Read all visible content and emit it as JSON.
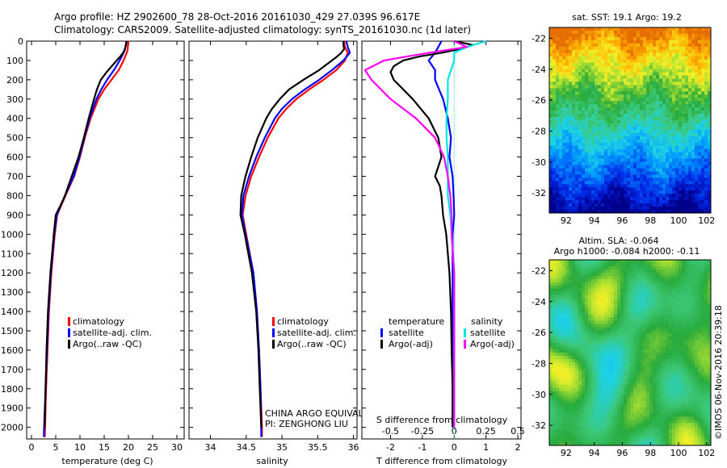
{
  "header": {
    "title_line1": "Argo profile: HZ 2902600_78 28-Oct-2016 20161030_429 27.039S 96.617E",
    "title_line2": "Climatology: CARS2009. Satellite-adjusted climatology: synTS_20161030.nc (1d later)"
  },
  "colors": {
    "climatology": "#ff0000",
    "satellite": "#0000ff",
    "argo": "#000000",
    "sal_satellite": "#00e5e5",
    "sal_argo": "#ff00ff"
  },
  "depth_ticks": [
    "0",
    "100",
    "200",
    "300",
    "400",
    "500",
    "600",
    "700",
    "800",
    "900",
    "1000",
    "1100",
    "1200",
    "1300",
    "1400",
    "1500",
    "1600",
    "1700",
    "1800",
    "1900",
    "2000"
  ],
  "chart_data": [
    {
      "type": "line",
      "name": "temperature-profile",
      "xlabel": "temperature (deg C)",
      "ylabel": "",
      "xlim": [
        -1,
        31.5
      ],
      "ylim": [
        2060,
        0
      ],
      "xticks": [
        "0",
        "5",
        "10",
        "15",
        "20",
        "25",
        "30"
      ],
      "legend": [
        "climatology",
        "satellite-adj. clim.",
        "Argo(..raw -QC)"
      ],
      "series": [
        {
          "name": "climatology",
          "color": "#ff0000",
          "depth": [
            0,
            50,
            100,
            150,
            200,
            250,
            300,
            400,
            500,
            600,
            700,
            800,
            900,
            1000,
            1200,
            1400,
            1600,
            1800,
            2000,
            2050
          ],
          "values": [
            20.0,
            19.8,
            19.0,
            18.0,
            16.5,
            15.0,
            13.8,
            12.2,
            11.0,
            10.0,
            8.8,
            7.0,
            5.3,
            4.8,
            4.1,
            3.6,
            3.3,
            3.0,
            2.8,
            2.75
          ]
        },
        {
          "name": "satellite-adj. clim.",
          "color": "#0000ff",
          "depth": [
            0,
            50,
            100,
            150,
            200,
            250,
            300,
            400,
            500,
            600,
            700,
            800,
            900,
            1000,
            1200,
            1400,
            1600,
            1800,
            2000,
            2050
          ],
          "values": [
            19.6,
            19.2,
            18.2,
            17.0,
            15.6,
            14.4,
            13.4,
            12.0,
            10.9,
            9.9,
            8.7,
            6.9,
            5.2,
            4.7,
            4.0,
            3.5,
            3.2,
            2.9,
            2.6,
            2.55
          ]
        },
        {
          "name": "Argo(..raw -QC)",
          "color": "#000000",
          "depth": [
            0,
            20,
            40,
            60,
            80,
            100,
            120,
            140,
            160,
            180,
            200,
            250,
            300,
            400,
            500,
            600,
            700,
            750,
            800,
            850,
            900,
            1000,
            1200,
            1400,
            1600,
            1800,
            2000
          ],
          "values": [
            19.6,
            19.5,
            19.3,
            18.9,
            18.3,
            17.6,
            16.9,
            16.2,
            15.5,
            14.9,
            14.3,
            13.5,
            12.9,
            11.8,
            10.8,
            9.7,
            8.3,
            7.6,
            6.9,
            6.0,
            5.0,
            4.6,
            3.9,
            3.4,
            3.1,
            2.9,
            2.7
          ]
        }
      ]
    },
    {
      "type": "line",
      "name": "salinity-profile",
      "xlabel": "salinity",
      "ylabel": "",
      "xlim": [
        33.7,
        36.05
      ],
      "ylim": [
        2060,
        0
      ],
      "xticks": [
        "34",
        "34.5",
        "35",
        "35.5",
        "36"
      ],
      "legend": [
        "climatology",
        "satellite-adj. clim.",
        "Argo(..raw -QC)"
      ],
      "annotations": [
        "CHINA ARGO EQUIVALENT",
        "PI: ZENGHONG LIU"
      ],
      "series": [
        {
          "name": "climatology",
          "color": "#ff0000",
          "depth": [
            0,
            30,
            60,
            100,
            150,
            200,
            250,
            300,
            350,
            400,
            500,
            600,
            700,
            800,
            900,
            1000,
            1200,
            1400,
            1600,
            1800,
            2000,
            2050
          ],
          "values": [
            35.87,
            35.88,
            35.92,
            35.88,
            35.76,
            35.58,
            35.38,
            35.2,
            35.06,
            34.95,
            34.8,
            34.68,
            34.57,
            34.49,
            34.45,
            34.5,
            34.6,
            34.65,
            34.68,
            34.7,
            34.72,
            34.72
          ]
        },
        {
          "name": "satellite-adj. clim.",
          "color": "#0000ff",
          "depth": [
            0,
            30,
            60,
            100,
            150,
            200,
            250,
            300,
            350,
            400,
            500,
            600,
            700,
            800,
            900,
            1000,
            1200,
            1400,
            1600,
            1800,
            2000,
            2050
          ],
          "values": [
            35.9,
            35.92,
            35.95,
            35.86,
            35.7,
            35.52,
            35.32,
            35.14,
            35.0,
            34.9,
            34.76,
            34.64,
            34.54,
            34.46,
            34.44,
            34.49,
            34.6,
            34.65,
            34.68,
            34.7,
            34.71,
            34.71
          ]
        },
        {
          "name": "Argo(..raw -QC)",
          "color": "#000000",
          "depth": [
            0,
            20,
            40,
            60,
            80,
            100,
            150,
            200,
            250,
            300,
            350,
            400,
            500,
            600,
            700,
            800,
            900,
            1000,
            1200,
            1400,
            1600,
            1800,
            2000
          ],
          "values": [
            35.86,
            35.86,
            35.87,
            35.83,
            35.77,
            35.7,
            35.52,
            35.3,
            35.1,
            34.97,
            34.86,
            34.78,
            34.66,
            34.57,
            34.49,
            34.43,
            34.42,
            34.48,
            34.58,
            34.64,
            34.67,
            34.69,
            34.71
          ]
        }
      ]
    },
    {
      "type": "line",
      "name": "difference-profile",
      "xlabel": "T difference from climatology",
      "x2label": "S difference from climatology",
      "xlim": [
        -2.9,
        2.1
      ],
      "ylim": [
        2060,
        0
      ],
      "xticks": [
        "-2",
        "-1",
        "0",
        "1",
        "2"
      ],
      "x2ticks": [
        "-0.5",
        "-0.25",
        "0",
        "0.25",
        "0.5"
      ],
      "legend_temperature_title": "temperature",
      "legend_salinity_title": "salinity",
      "legend": [
        "satellite",
        "Argo(-adj)",
        "satellite",
        "Argo(-adj)"
      ],
      "series": [
        {
          "name": "satellite",
          "group": "temperature",
          "color": "#0000ff",
          "depth": [
            0,
            30,
            60,
            100,
            150,
            200,
            300,
            400,
            500,
            600,
            700,
            800,
            900,
            1000,
            1200,
            1400,
            1600,
            1800,
            2000
          ],
          "values": [
            -0.4,
            -0.5,
            -0.6,
            -0.8,
            -0.6,
            -0.6,
            -0.35,
            -0.2,
            -0.1,
            -0.15,
            -0.05,
            -0.02,
            0.0,
            -0.05,
            -0.05,
            -0.05,
            -0.05,
            -0.05,
            -0.05
          ]
        },
        {
          "name": "Argo(-adj)",
          "group": "temperature",
          "color": "#000000",
          "depth": [
            0,
            20,
            40,
            60,
            80,
            100,
            130,
            160,
            200,
            250,
            300,
            400,
            500,
            600,
            700,
            750,
            800,
            900,
            1000,
            1200,
            1400,
            1600,
            1800,
            2000
          ],
          "values": [
            0.0,
            0.6,
            0.2,
            -0.4,
            -1.1,
            -1.6,
            -1.9,
            -2.0,
            -1.9,
            -1.6,
            -1.3,
            -0.8,
            -0.5,
            -0.4,
            -0.6,
            -0.45,
            -0.4,
            -0.35,
            -0.25,
            -0.15,
            -0.1,
            -0.08,
            -0.05,
            -0.05
          ]
        },
        {
          "name": "satellite",
          "group": "salinity",
          "color": "#00e5e5",
          "depth": [
            0,
            30,
            60,
            100,
            200,
            300,
            400,
            500,
            600,
            700,
            800,
            900,
            1000,
            1200,
            1400,
            1600,
            1800,
            2000
          ],
          "values": [
            0.25,
            0.1,
            0.0,
            0.0,
            -0.05,
            -0.05,
            -0.06,
            -0.06,
            -0.05,
            -0.05,
            -0.05,
            -0.03,
            -0.02,
            0.0,
            0.0,
            0.0,
            0.0,
            0.0
          ]
        },
        {
          "name": "Argo(-adj)",
          "group": "salinity",
          "color": "#ff00ff",
          "depth": [
            0,
            30,
            60,
            100,
            150,
            200,
            300,
            400,
            500,
            600,
            700,
            800,
            900,
            1000,
            1200,
            1400,
            1600,
            1800,
            2000
          ],
          "values": [
            0.0,
            0.1,
            -0.2,
            -0.55,
            -0.7,
            -0.65,
            -0.5,
            -0.3,
            -0.15,
            -0.08,
            -0.05,
            -0.03,
            -0.02,
            -0.02,
            0.0,
            0.0,
            0.0,
            0.0,
            0.0
          ]
        }
      ]
    },
    {
      "type": "heatmap",
      "name": "sst-map",
      "title": "sat. SST: 19.1  Argo: 19.2",
      "xlim": [
        90.8,
        102.3
      ],
      "ylim": [
        -33.3,
        -21.3
      ],
      "xticks": [
        "92",
        "94",
        "96",
        "98",
        "100",
        "102"
      ],
      "yticks": [
        "-22",
        "-24",
        "-26",
        "-28",
        "-30",
        "-32"
      ]
    },
    {
      "type": "heatmap",
      "name": "sla-map",
      "title_line1": "Altim. SLA: -0.064",
      "title_line2": "Argo h1000: -0.084 h2000: -0.11",
      "xlim": [
        90.8,
        102.3
      ],
      "ylim": [
        -33.3,
        -21.3
      ],
      "xticks": [
        "92",
        "94",
        "96",
        "98",
        "100",
        "102"
      ],
      "yticks": [
        "-22",
        "-24",
        "-26",
        "-28",
        "-30",
        "-32"
      ]
    }
  ],
  "footer": {
    "credit": "©IMOS 06-Nov-2016 20:39:18"
  }
}
